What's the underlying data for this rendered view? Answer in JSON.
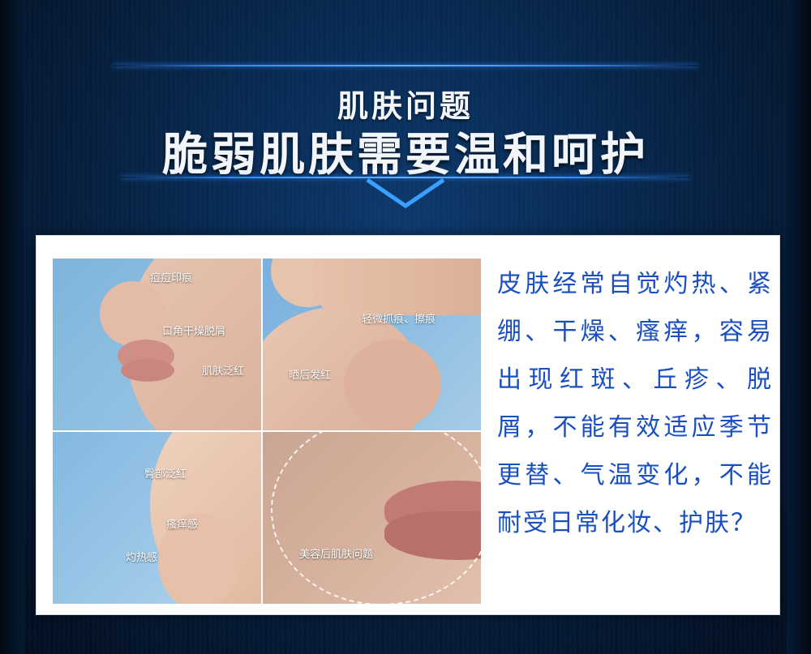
{
  "header": {
    "subtitle": "肌肤问题",
    "title": "脆弱肌肤需要温和呵护"
  },
  "photos": {
    "face": {
      "labels": [
        "痘痘印痕",
        "口角干燥脱屑",
        "肌肤泛红"
      ]
    },
    "arm": {
      "labels": [
        "轻微抓痕、擦痕",
        "晒后发红"
      ]
    },
    "baby": {
      "labels": [
        "臀部泛红",
        "瘙痒感",
        "灼热感"
      ]
    },
    "lips": {
      "labels": [
        "美容后肌肤问题"
      ]
    }
  },
  "description": "皮肤经常自觉灼热、紧绷、干燥、瘙痒，容易出现红斑、丘疹、脱屑，不能有效适应季节更替、气温变化，不能耐受日常化妆、护肤？",
  "colors": {
    "accent_line": "#2f8cff",
    "description_text": "#1a4fbf",
    "background": "#082a52"
  }
}
